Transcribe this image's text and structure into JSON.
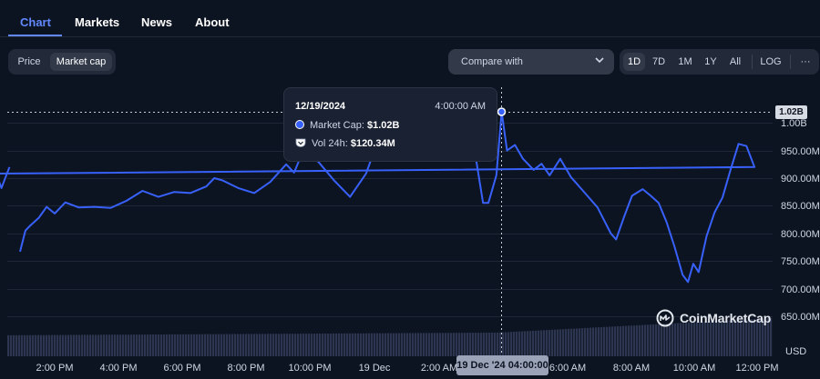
{
  "tabs": [
    {
      "label": "Chart",
      "active": true
    },
    {
      "label": "Markets",
      "active": false
    },
    {
      "label": "News",
      "active": false
    },
    {
      "label": "About",
      "active": false
    }
  ],
  "toolbar": {
    "metric_toggle": [
      {
        "label": "Price",
        "active": false
      },
      {
        "label": "Market cap",
        "active": true
      }
    ],
    "compare_label": "Compare with",
    "ranges": [
      {
        "label": "1D",
        "active": true
      },
      {
        "label": "7D",
        "active": false
      },
      {
        "label": "1M",
        "active": false
      },
      {
        "label": "1Y",
        "active": false
      },
      {
        "label": "All",
        "active": false
      }
    ],
    "log_label": "LOG",
    "more_label": "···"
  },
  "tooltip": {
    "date": "12/19/2024",
    "time": "4:00:00 AM",
    "market_cap_label": "Market Cap:",
    "market_cap_value": "$1.02B",
    "volume_label": "Vol 24h:",
    "volume_value": "$120.34M"
  },
  "crosshair": {
    "price_label": "1.02B",
    "date_label": "19 Dec '24 04:00:00"
  },
  "watermark": "CoinMarketCap",
  "colors": {
    "line": "#3861fb",
    "accent": "#6188ff",
    "background": "#0d1421",
    "volume": "#39425a"
  },
  "chart_data": {
    "type": "line",
    "series": [
      {
        "values": [
          {
            "t": "12:55",
            "v": 767
          },
          {
            "t": "13:05",
            "v": 805
          },
          {
            "t": "13:15",
            "v": 815
          },
          {
            "t": "13:30",
            "v": 828
          },
          {
            "t": "13:45",
            "v": 848
          },
          {
            "t": "14:00",
            "v": 836
          },
          {
            "t": "14:20",
            "v": 856
          },
          {
            "t": "14:45",
            "v": 847
          },
          {
            "t": "15:15",
            "v": 848
          },
          {
            "t": "15:45",
            "v": 846
          },
          {
            "t": "16:15",
            "v": 859
          },
          {
            "t": "16:45",
            "v": 877
          },
          {
            "t": "17:15",
            "v": 866
          },
          {
            "t": "17:45",
            "v": 875
          },
          {
            "t": "18:15",
            "v": 873
          },
          {
            "t": "18:45",
            "v": 885
          },
          {
            "t": "19:00",
            "v": 900
          },
          {
            "t": "19:15",
            "v": 896
          },
          {
            "t": "19:45",
            "v": 882
          },
          {
            "t": "20:15",
            "v": 873
          },
          {
            "t": "20:45",
            "v": 893
          },
          {
            "t": "21:15",
            "v": 925
          },
          {
            "t": "21:30",
            "v": 910
          },
          {
            "t": "21:45",
            "v": 945
          },
          {
            "t": "22:15",
            "v": 930
          },
          {
            "t": "22:45",
            "v": 896
          },
          {
            "t": "23:15",
            "v": 866
          },
          {
            "t": "23:45",
            "v": 908
          },
          {
            "t": "00:00",
            "v": 948
          },
          {
            "t": "03:10",
            "v": 945
          },
          {
            "t": "03:25",
            "v": 855
          },
          {
            "t": "03:35",
            "v": 855
          },
          {
            "t": "03:50",
            "v": 905
          },
          {
            "t": "04:00",
            "v": 1020
          },
          {
            "t": "04:10",
            "v": 950
          },
          {
            "t": "04:25",
            "v": 960
          },
          {
            "t": "04:40",
            "v": 935
          },
          {
            "t": "05:00",
            "v": 915
          },
          {
            "t": "05:15",
            "v": 926
          },
          {
            "t": "05:30",
            "v": 905
          },
          {
            "t": "05:50",
            "v": 935
          },
          {
            "t": "06:10",
            "v": 902
          },
          {
            "t": "06:30",
            "v": 880
          },
          {
            "t": "07:00",
            "v": 847
          },
          {
            "t": "07:25",
            "v": 800
          },
          {
            "t": "07:35",
            "v": 789
          },
          {
            "t": "07:50",
            "v": 830
          },
          {
            "t": "08:05",
            "v": 868
          },
          {
            "t": "08:25",
            "v": 880
          },
          {
            "t": "08:40",
            "v": 868
          },
          {
            "t": "08:55",
            "v": 855
          },
          {
            "t": "09:10",
            "v": 820
          },
          {
            "t": "09:25",
            "v": 775
          },
          {
            "t": "09:40",
            "v": 725
          },
          {
            "t": "09:50",
            "v": 712
          },
          {
            "t": "10:00",
            "v": 745
          },
          {
            "t": "10:10",
            "v": 730
          },
          {
            "t": "10:25",
            "v": 795
          },
          {
            "t": "10:40",
            "v": 838
          },
          {
            "t": "10:55",
            "v": 865
          },
          {
            "t": "11:10",
            "v": 915
          },
          {
            "t": "11:25",
            "v": 962
          },
          {
            "t": "11:40",
            "v": 958
          },
          {
            "t": "11:55",
            "v": 920
          },
          {
            "t": "12:10",
            "v": 908
          },
          {
            "t": "12:20",
            "v": 882
          },
          {
            "t": "12:35",
            "v": 920
          }
        ]
      }
    ],
    "x_ticks": [
      "2:00 PM",
      "4:00 PM",
      "6:00 PM",
      "8:00 PM",
      "10:00 PM",
      "19 Dec",
      "2:00 AM",
      "6:00 AM",
      "8:00 AM",
      "10:00 AM",
      "12:00 PM"
    ],
    "y_ticks": [
      "1.00B",
      "950.00M",
      "900.00M",
      "850.00M",
      "800.00M",
      "750.00M",
      "700.00M",
      "650.00M"
    ],
    "y_unit_label": "USD",
    "y_unit": "M",
    "ylim": [
      640,
      1040
    ],
    "grid": true,
    "log_scale": false,
    "volume": {
      "relative_level_start": 0.55,
      "relative_level_mid": 0.62,
      "relative_level_end": 1.0
    }
  }
}
